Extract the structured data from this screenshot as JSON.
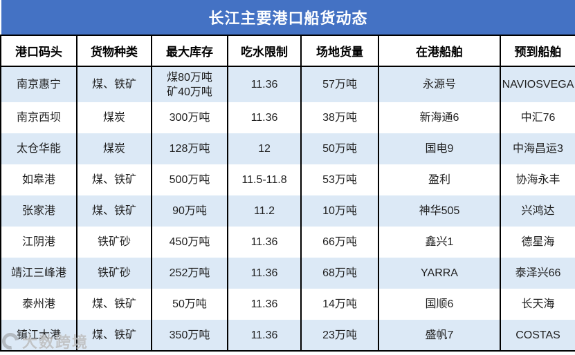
{
  "title": "长江主要港口船货动态",
  "watermark": {
    "logo": "ring-logo-icon",
    "text": "大数跨境"
  },
  "colors": {
    "title_bar_bg": "#4472C4",
    "title_text": "#FFFFFF",
    "row_alt_bg": "#DCE9F6",
    "row_bg": "#FFFFFF",
    "border": "#000000",
    "cell_text": "#1F1F1F"
  },
  "chart_data": {
    "type": "table",
    "title": "长江主要港口船货动态",
    "columns": [
      "港口码头",
      "货物种类",
      "最大库存",
      "吃水限制",
      "场地货量",
      "在港船舶",
      "预到船舶"
    ],
    "rows": [
      [
        "南京惠宁",
        "煤、铁矿",
        "煤80万吨\n矿40万吨",
        "11.36",
        "57万吨",
        "永源号",
        "NAVIOSVEGA"
      ],
      [
        "南京西坝",
        "煤炭",
        "300万吨",
        "11.36",
        "38万吨",
        "新海通6",
        "中汇76"
      ],
      [
        "太仓华能",
        "煤炭",
        "128万吨",
        "12",
        "50万吨",
        "国电9",
        "中海昌运3"
      ],
      [
        "如皋港",
        "煤、铁矿",
        "500万吨",
        "11.5-11.8",
        "53万吨",
        "盈利",
        "协海永丰"
      ],
      [
        "张家港",
        "煤、铁矿",
        "90万吨",
        "11.2",
        "10万吨",
        "神华505",
        "兴鸿达"
      ],
      [
        "江阴港",
        "铁矿砂",
        "450万吨",
        "11.36",
        "66万吨",
        "鑫兴1",
        "德星海"
      ],
      [
        "靖江三峰港",
        "铁矿砂",
        "252万吨",
        "11.36",
        "68万吨",
        "YARRA",
        "泰泽兴66"
      ],
      [
        "泰州港",
        "煤、铁矿",
        "50万吨",
        "11.36",
        "14万吨",
        "国顺6",
        "长天海"
      ],
      [
        "镇江大港",
        "煤、铁矿",
        "350万吨",
        "11.36",
        "23万吨",
        "盛帆7",
        "COSTAS"
      ]
    ]
  }
}
